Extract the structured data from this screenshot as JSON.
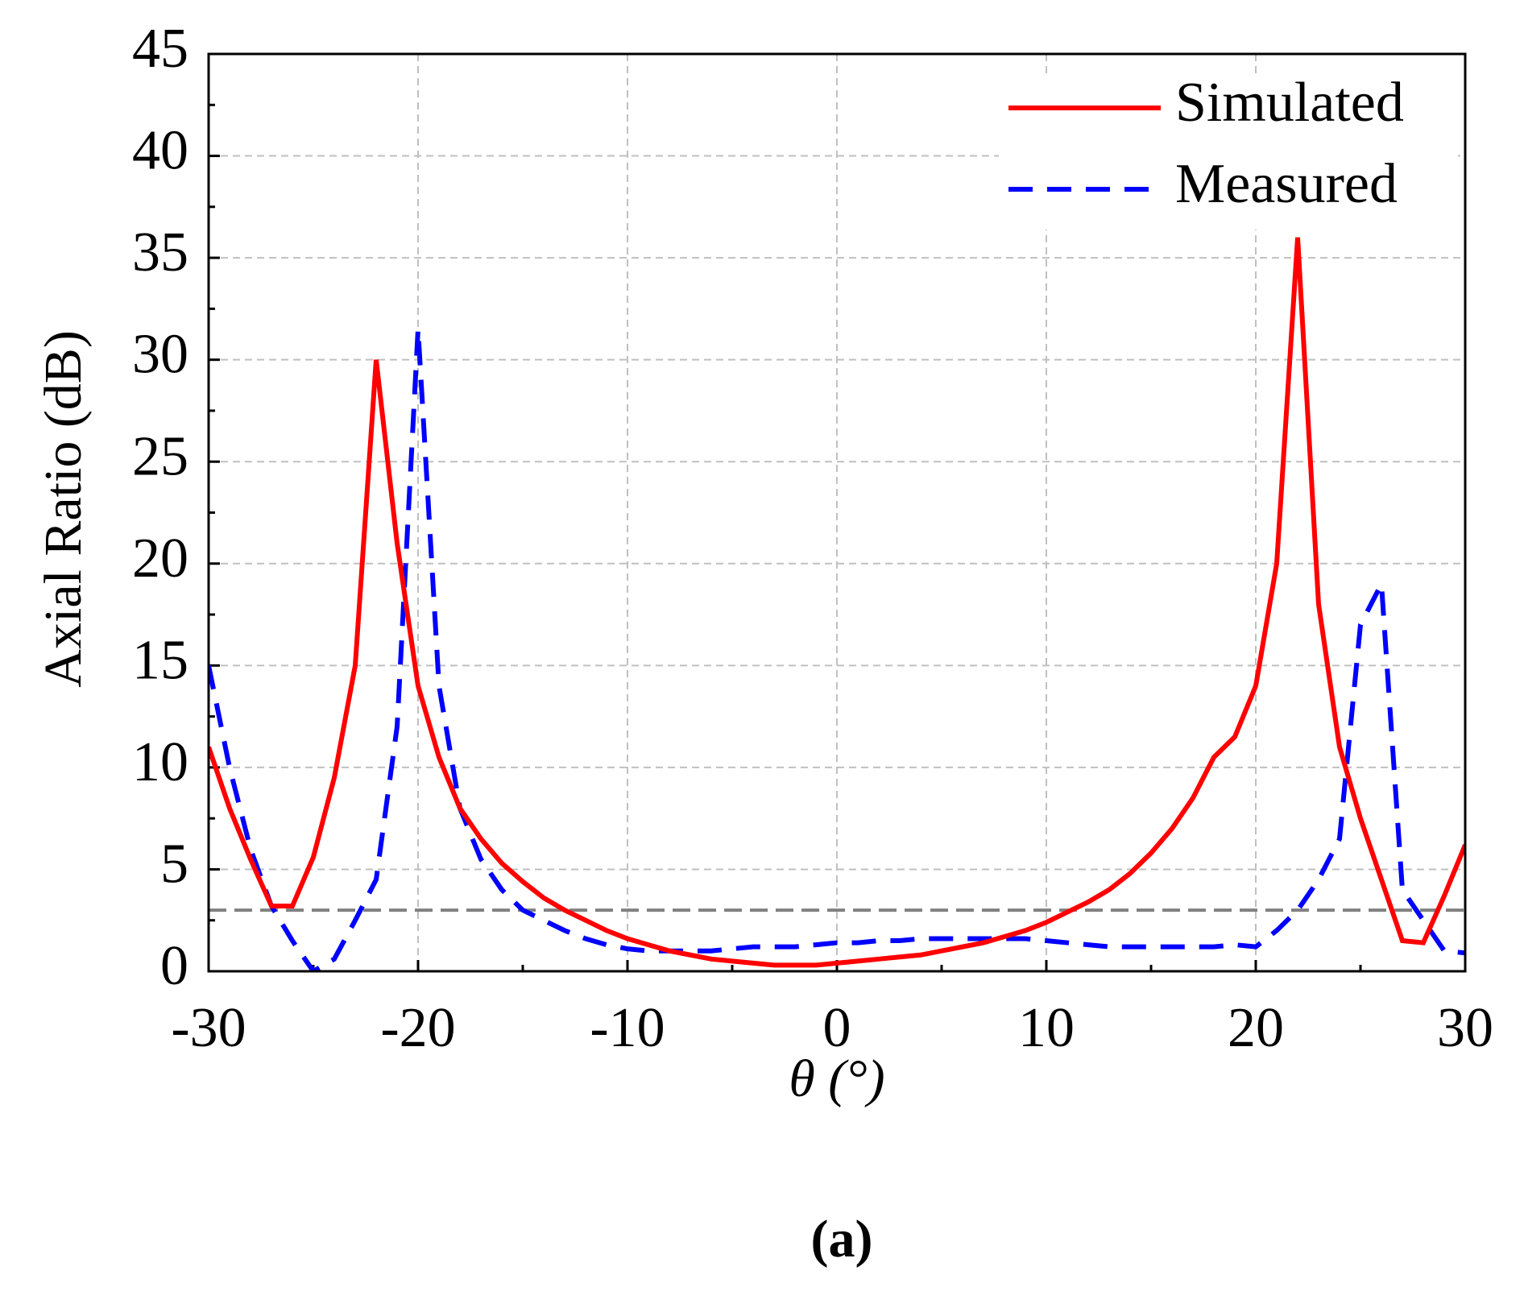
{
  "chart_data": {
    "type": "line",
    "y_label": "Axial Ratio (dB)",
    "x_label": "θ (°)",
    "caption": "(a)",
    "x": [
      -30,
      -29,
      -28,
      -27,
      -26,
      -25,
      -24,
      -23,
      -22,
      -21,
      -20,
      -19,
      -18,
      -17,
      -16,
      -15,
      -14,
      -13,
      -12,
      -11,
      -10,
      -9,
      -8,
      -7,
      -6,
      -5,
      -4,
      -3,
      -2,
      -1,
      0,
      1,
      2,
      3,
      4,
      5,
      6,
      7,
      8,
      9,
      10,
      11,
      12,
      13,
      14,
      15,
      16,
      17,
      18,
      19,
      20,
      21,
      22,
      23,
      24,
      25,
      26,
      27,
      28,
      29,
      30
    ],
    "series": [
      {
        "name": "Simulated",
        "color": "#ff0000",
        "dash": false,
        "values": [
          11,
          8,
          5.5,
          3.2,
          3.2,
          5.6,
          9.5,
          15,
          30,
          21,
          14,
          10.5,
          8,
          6.5,
          5.3,
          4.4,
          3.6,
          3,
          2.5,
          2,
          1.6,
          1.3,
          1,
          0.8,
          0.6,
          0.5,
          0.4,
          0.3,
          0.3,
          0.3,
          0.4,
          0.5,
          0.6,
          0.7,
          0.8,
          1,
          1.2,
          1.4,
          1.7,
          2,
          2.4,
          2.9,
          3.4,
          4,
          4.8,
          5.8,
          7,
          8.5,
          10.5,
          11.5,
          14,
          20,
          36,
          18,
          11,
          7.5,
          4.5,
          1.5,
          1.4,
          3.7,
          6.2
        ]
      },
      {
        "name": "Measured",
        "color": "#0000ff",
        "dash": true,
        "values": [
          15,
          10,
          6,
          3.2,
          1.5,
          0,
          0.6,
          2.5,
          4.5,
          12,
          31.5,
          14,
          8,
          5.5,
          4,
          3,
          2.5,
          2,
          1.6,
          1.3,
          1.1,
          1,
          1,
          1,
          1,
          1.1,
          1.2,
          1.2,
          1.2,
          1.3,
          1.4,
          1.4,
          1.5,
          1.5,
          1.6,
          1.6,
          1.6,
          1.6,
          1.6,
          1.6,
          1.5,
          1.4,
          1.3,
          1.2,
          1.2,
          1.2,
          1.2,
          1.2,
          1.2,
          1.3,
          1.2,
          2,
          3,
          4.5,
          6.5,
          17,
          19,
          4,
          2.5,
          1,
          0.9
        ]
      }
    ],
    "reference_line": 3,
    "xlim": [
      -30,
      30
    ],
    "xticks": [
      -30,
      -20,
      -10,
      0,
      10,
      20,
      30
    ],
    "ylim": [
      0,
      45
    ],
    "yticks": [
      0,
      5,
      10,
      15,
      20,
      25,
      30,
      35,
      40,
      45
    ],
    "grid": true,
    "legend": "upper right"
  }
}
